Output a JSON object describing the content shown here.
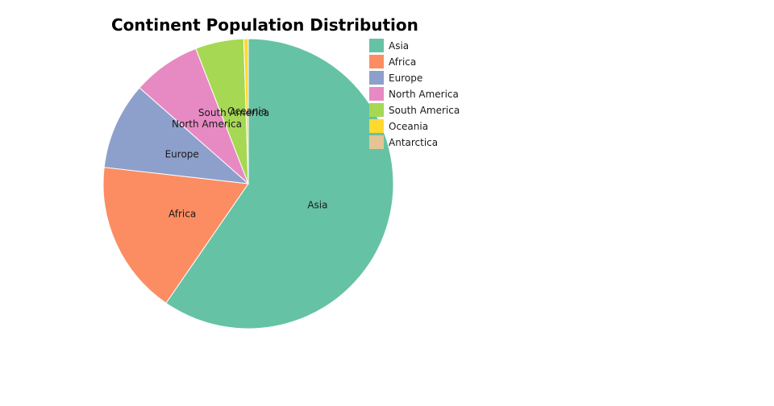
{
  "chart_data": {
    "type": "pie",
    "title": "Continent Population Distribution",
    "legend_position": "right",
    "categories": [
      "Asia",
      "Africa",
      "Europe",
      "North America",
      "South America",
      "Oceania",
      "Antarctica"
    ],
    "values": [
      59.6,
      17.2,
      9.7,
      7.6,
      5.4,
      0.5,
      0.0
    ],
    "colors": [
      "#66c2a5",
      "#fc8d62",
      "#8da0cb",
      "#e78ac3",
      "#a6d854",
      "#ffd92f",
      "#e5c494"
    ]
  }
}
